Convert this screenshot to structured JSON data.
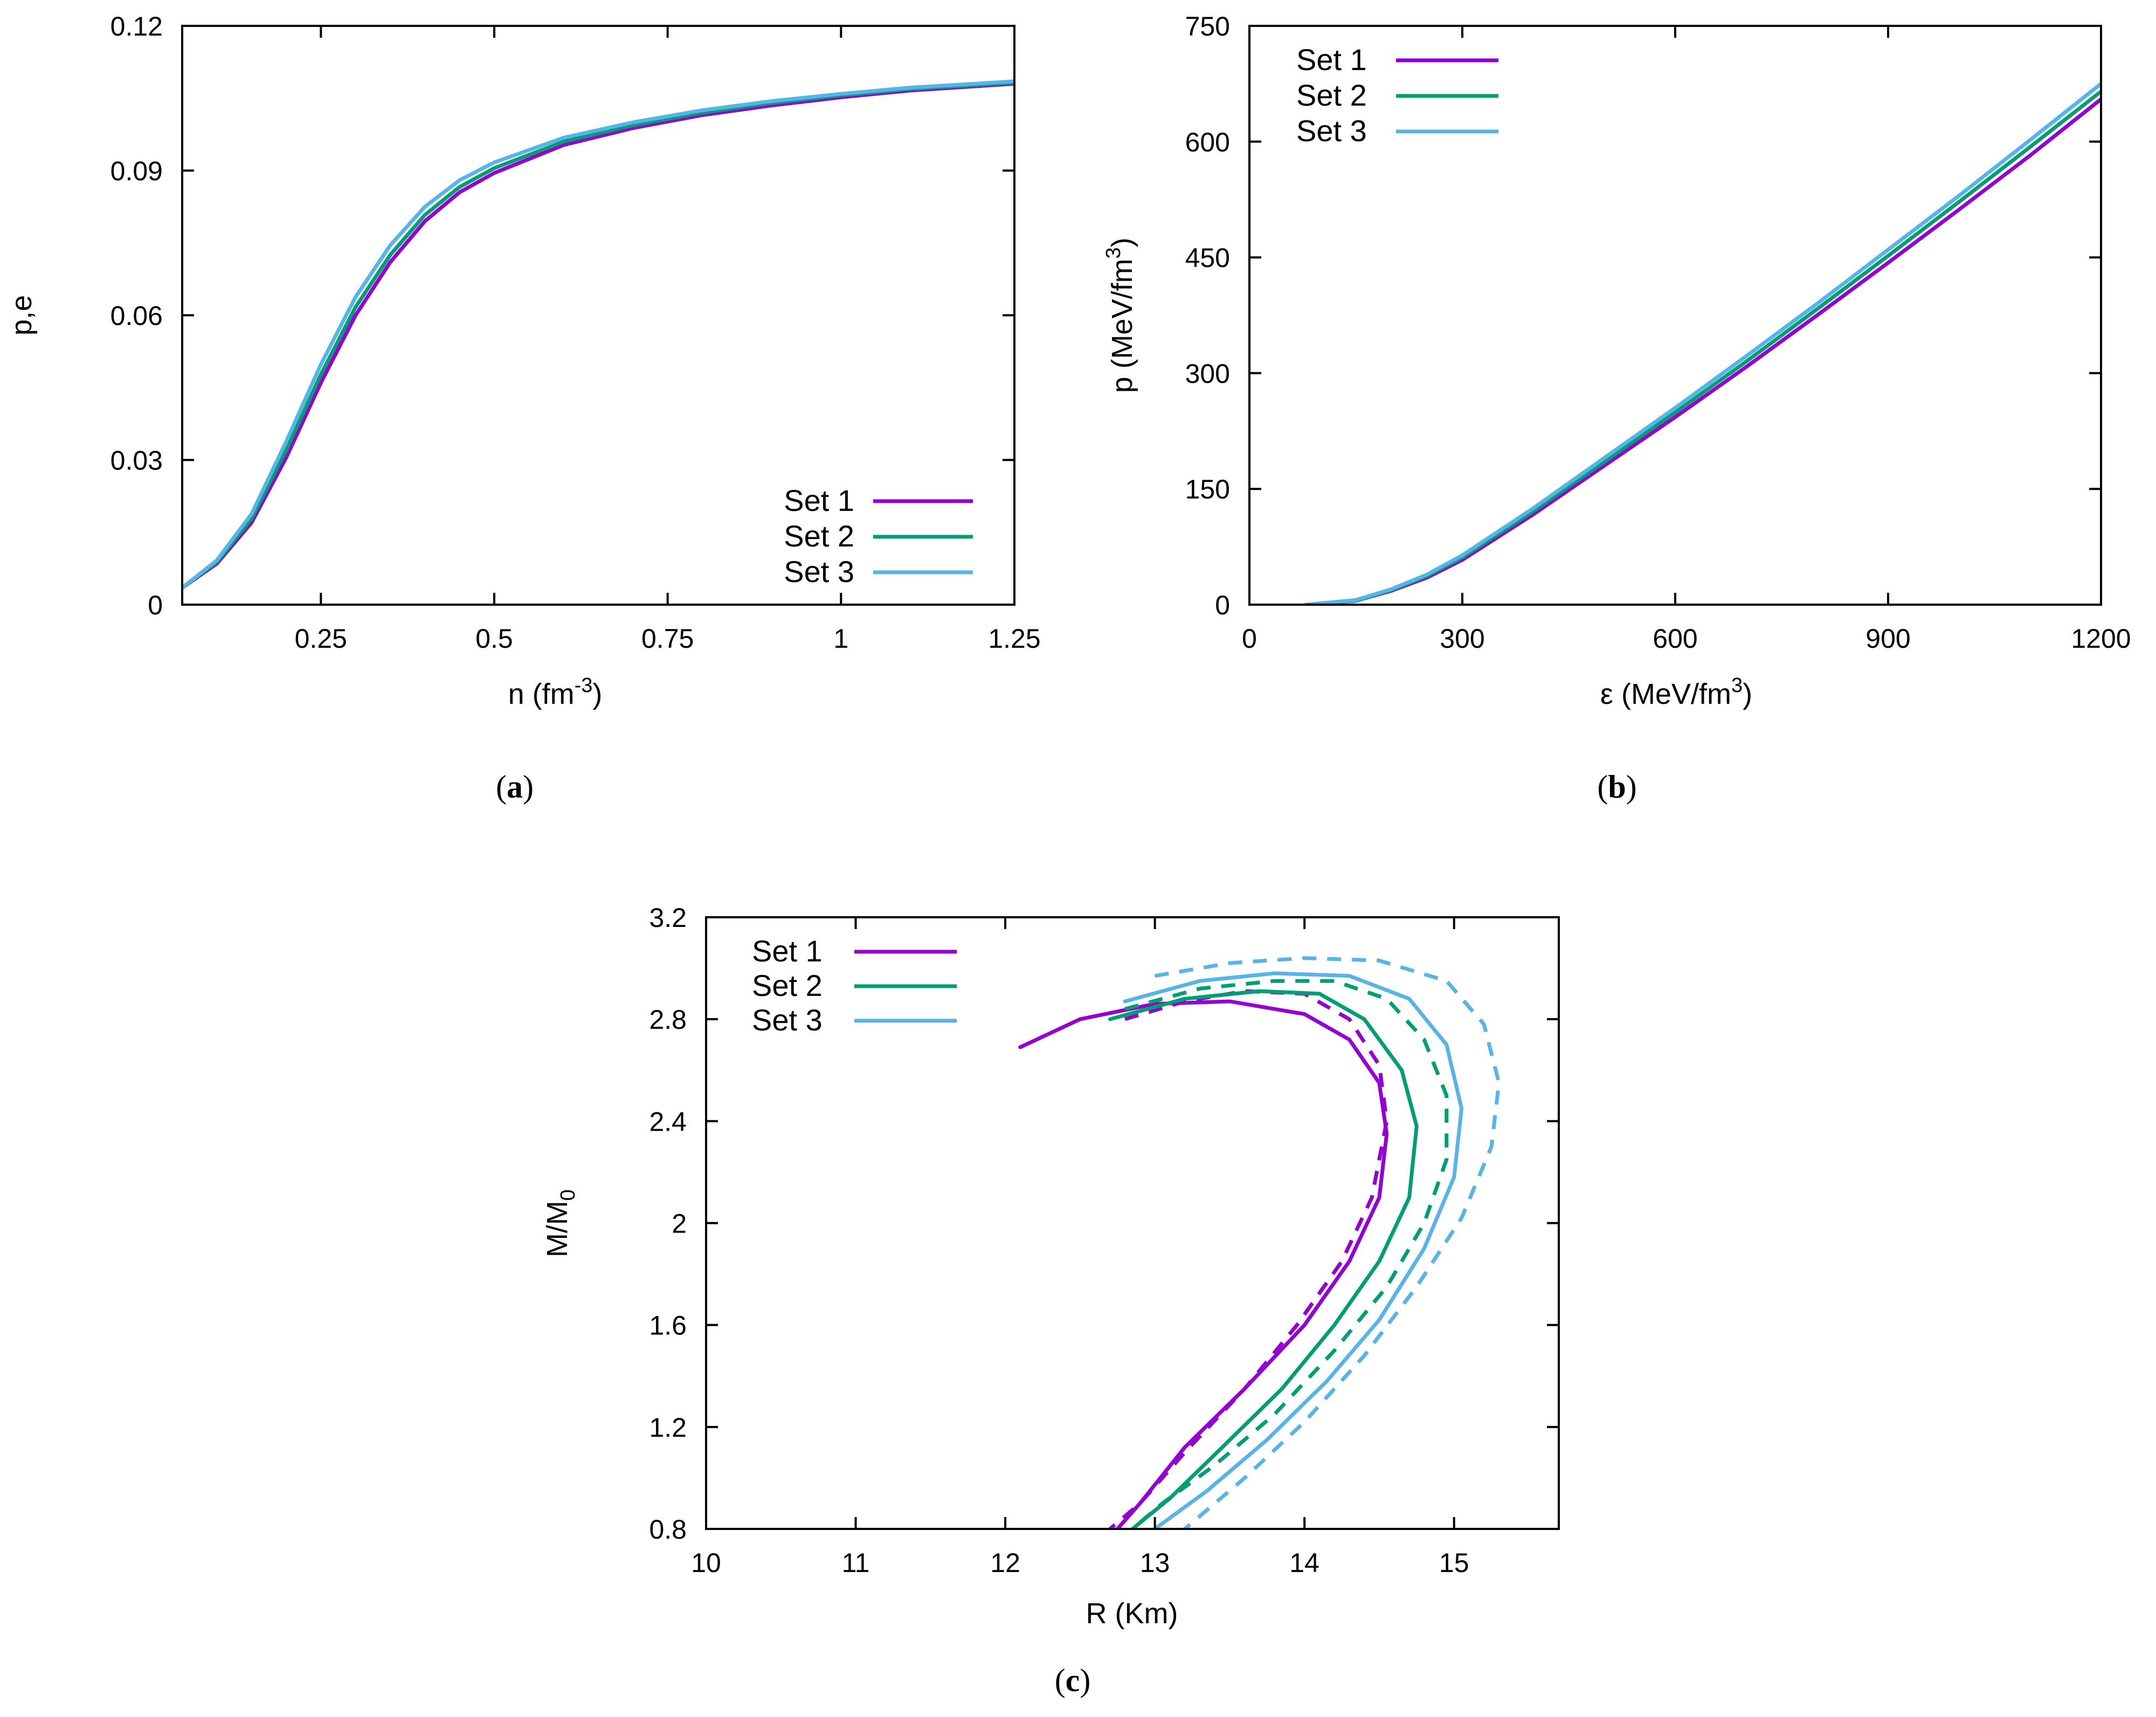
{
  "colors": {
    "set1": "#9400d3",
    "set2": "#009e73",
    "set3": "#56b4e9"
  },
  "chart_data": [
    {
      "id": "a",
      "type": "line",
      "panel_label": {
        "open": "(",
        "letter": "a",
        "close": ")"
      },
      "xlabel": {
        "main": "n  (fm",
        "sup": "-3",
        "close": ")"
      },
      "ylabel": "p,e",
      "xlim": [
        0.05,
        1.25
      ],
      "ylim": [
        0,
        0.12
      ],
      "xticks": [
        0.25,
        0.5,
        0.75,
        1,
        1.25
      ],
      "xtick_labels": [
        "0.25",
        "0.5",
        "0.75",
        "1",
        "1.25"
      ],
      "yticks": [
        0,
        0.03,
        0.06,
        0.09,
        0.12
      ],
      "ytick_labels": [
        "0",
        "0.03",
        "0.06",
        "0.09",
        "0.12"
      ],
      "legend": {
        "position": "bottom-right",
        "entries": [
          "Set 1",
          "Set 2",
          "Set 3"
        ]
      },
      "series": [
        {
          "name": "Set 1",
          "color_key": "set1",
          "x": [
            0.05,
            0.1,
            0.15,
            0.2,
            0.25,
            0.3,
            0.35,
            0.4,
            0.45,
            0.5,
            0.6,
            0.7,
            0.8,
            0.9,
            1.0,
            1.1,
            1.25
          ],
          "y": [
            0.0035,
            0.0085,
            0.017,
            0.0305,
            0.046,
            0.06,
            0.071,
            0.0795,
            0.0855,
            0.0895,
            0.0953,
            0.0988,
            0.1015,
            0.1035,
            0.1052,
            0.1066,
            0.108
          ]
        },
        {
          "name": "Set 2",
          "color_key": "set2",
          "x": [
            0.05,
            0.1,
            0.15,
            0.2,
            0.25,
            0.3,
            0.35,
            0.4,
            0.45,
            0.5,
            0.6,
            0.7,
            0.8,
            0.9,
            1.0,
            1.1,
            1.25
          ],
          "y": [
            0.0035,
            0.0088,
            0.0178,
            0.032,
            0.0477,
            0.0617,
            0.0725,
            0.0808,
            0.0866,
            0.0905,
            0.096,
            0.0994,
            0.102,
            0.104,
            0.1056,
            0.1069,
            0.1082
          ]
        },
        {
          "name": "Set 3",
          "color_key": "set3",
          "x": [
            0.05,
            0.1,
            0.15,
            0.2,
            0.25,
            0.3,
            0.35,
            0.4,
            0.45,
            0.5,
            0.6,
            0.7,
            0.8,
            0.9,
            1.0,
            1.1,
            1.25
          ],
          "y": [
            0.0035,
            0.0092,
            0.0188,
            0.0338,
            0.0498,
            0.0638,
            0.0745,
            0.0825,
            0.088,
            0.0917,
            0.0968,
            0.1,
            0.1025,
            0.1044,
            0.1059,
            0.1072,
            0.1085
          ]
        }
      ]
    },
    {
      "id": "b",
      "type": "line",
      "panel_label": {
        "open": "(",
        "letter": "b",
        "close": ")"
      },
      "xlabel": {
        "main": "ε  (MeV/fm",
        "sup": "3",
        "close": ")"
      },
      "ylabel": {
        "main": "p  (MeV/fm",
        "sup": "3",
        "close": ")"
      },
      "xlim": [
        0,
        1200
      ],
      "ylim": [
        0,
        750
      ],
      "xticks": [
        0,
        300,
        600,
        900,
        1200
      ],
      "xtick_labels": [
        "0",
        "300",
        "600",
        "900",
        "1200"
      ],
      "yticks": [
        0,
        150,
        300,
        450,
        600,
        750
      ],
      "ytick_labels": [
        "0",
        "150",
        "300",
        "450",
        "600",
        "750"
      ],
      "legend": {
        "position": "top-left",
        "entries": [
          "Set 1",
          "Set 2",
          "Set 3"
        ]
      },
      "series": [
        {
          "name": "Set 1",
          "color_key": "set1",
          "x": [
            80,
            150,
            200,
            250,
            300,
            400,
            500,
            600,
            700,
            800,
            900,
            1000,
            1100,
            1200
          ],
          "y": [
            0,
            5,
            18,
            35,
            58,
            117,
            180,
            243,
            308,
            375,
            443,
            512,
            582,
            655
          ]
        },
        {
          "name": "Set 2",
          "color_key": "set2",
          "x": [
            80,
            150,
            200,
            250,
            300,
            400,
            500,
            600,
            700,
            800,
            900,
            1000,
            1100,
            1200
          ],
          "y": [
            0,
            5,
            19,
            37,
            61,
            121,
            185,
            249,
            315,
            383,
            452,
            522,
            593,
            665
          ]
        },
        {
          "name": "Set 3",
          "color_key": "set3",
          "x": [
            80,
            150,
            200,
            250,
            300,
            400,
            500,
            600,
            700,
            800,
            900,
            1000,
            1100,
            1200
          ],
          "y": [
            0,
            6,
            20,
            39,
            64,
            125,
            190,
            255,
            322,
            390,
            460,
            530,
            602,
            675
          ]
        }
      ]
    },
    {
      "id": "c",
      "type": "line",
      "panel_label": {
        "open": "(",
        "letter": "c",
        "close": ")"
      },
      "xlabel": "R  (Km)",
      "ylabel": {
        "main": "M/M",
        "sub": "0"
      },
      "xlim": [
        10,
        15.7
      ],
      "ylim": [
        0.8,
        3.2
      ],
      "xticks": [
        10,
        11,
        12,
        13,
        14,
        15
      ],
      "xtick_labels": [
        "10",
        "11",
        "12",
        "13",
        "14",
        "15"
      ],
      "yticks": [
        0.8,
        1.2,
        1.6,
        2.0,
        2.4,
        2.8,
        3.2
      ],
      "ytick_labels": [
        "0.8",
        "1.2",
        "1.6",
        "2",
        "2.4",
        "2.8",
        "3.2"
      ],
      "legend": {
        "position": "top-left",
        "entries": [
          "Set 1",
          "Set 2",
          "Set 3"
        ]
      },
      "series": [
        {
          "name": "Set 1",
          "color_key": "set1",
          "dashed": false,
          "x": [
            12.1,
            12.5,
            13.0,
            13.5,
            14.0,
            14.3,
            14.5,
            14.55,
            14.5,
            14.3,
            14.0,
            13.6,
            13.2,
            12.9,
            12.75
          ],
          "y": [
            2.69,
            2.8,
            2.86,
            2.87,
            2.82,
            2.72,
            2.55,
            2.35,
            2.1,
            1.85,
            1.6,
            1.35,
            1.12,
            0.9,
            0.8
          ]
        },
        {
          "name": "Set 1",
          "color_key": "set1",
          "dashed": true,
          "x": [
            12.8,
            13.2,
            13.6,
            14.0,
            14.3,
            14.5,
            14.55,
            14.45,
            14.25,
            13.95,
            13.6,
            13.2,
            12.9,
            12.7
          ],
          "y": [
            2.8,
            2.87,
            2.91,
            2.9,
            2.8,
            2.62,
            2.4,
            2.1,
            1.85,
            1.6,
            1.35,
            1.1,
            0.9,
            0.8
          ]
        },
        {
          "name": "Set 2",
          "color_key": "set2",
          "dashed": false,
          "x": [
            12.7,
            13.2,
            13.7,
            14.1,
            14.4,
            14.65,
            14.75,
            14.7,
            14.5,
            14.2,
            13.85,
            13.45,
            13.1,
            12.85
          ],
          "y": [
            2.8,
            2.88,
            2.91,
            2.9,
            2.8,
            2.6,
            2.38,
            2.1,
            1.85,
            1.6,
            1.35,
            1.12,
            0.92,
            0.8
          ]
        },
        {
          "name": "Set 2",
          "color_key": "set2",
          "dashed": true,
          "x": [
            12.8,
            13.3,
            13.8,
            14.2,
            14.55,
            14.8,
            14.95,
            14.95,
            14.8,
            14.55,
            14.2,
            13.8,
            13.4,
            13.05,
            12.85
          ],
          "y": [
            2.84,
            2.92,
            2.95,
            2.95,
            2.88,
            2.72,
            2.5,
            2.25,
            2.0,
            1.75,
            1.5,
            1.25,
            1.05,
            0.9,
            0.8
          ]
        },
        {
          "name": "Set 3",
          "color_key": "set3",
          "dashed": false,
          "x": [
            12.8,
            13.3,
            13.8,
            14.3,
            14.7,
            14.95,
            15.05,
            15.0,
            14.8,
            14.5,
            14.15,
            13.75,
            13.35,
            13.0
          ],
          "y": [
            2.87,
            2.95,
            2.98,
            2.97,
            2.88,
            2.7,
            2.45,
            2.18,
            1.9,
            1.62,
            1.38,
            1.15,
            0.95,
            0.8
          ]
        },
        {
          "name": "Set 3",
          "color_key": "set3",
          "dashed": true,
          "x": [
            13.0,
            13.5,
            14.0,
            14.5,
            14.95,
            15.2,
            15.3,
            15.25,
            15.05,
            14.75,
            14.4,
            14.0,
            13.6,
            13.2
          ],
          "y": [
            2.97,
            3.02,
            3.04,
            3.03,
            2.95,
            2.78,
            2.55,
            2.3,
            2.02,
            1.75,
            1.48,
            1.22,
            1.0,
            0.8
          ]
        }
      ]
    }
  ]
}
